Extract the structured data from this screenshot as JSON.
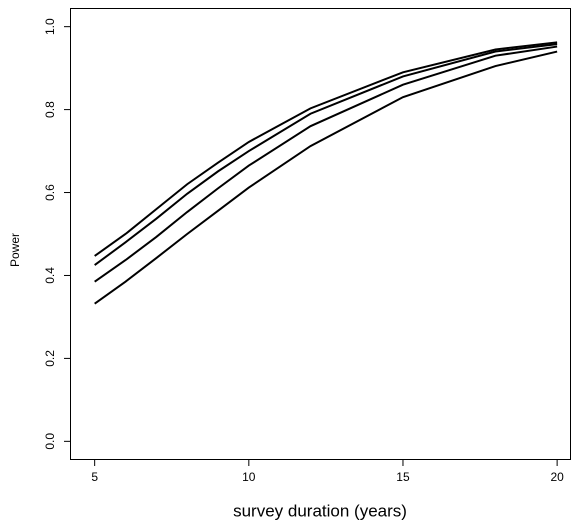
{
  "chart_data": {
    "type": "line",
    "x_label": "survey duration (years)",
    "y_label": "Power",
    "x": [
      5,
      6,
      7,
      8,
      9,
      10,
      12,
      15,
      18,
      20
    ],
    "series": [
      {
        "color": "#000000",
        "values": [
          0.447,
          0.5,
          0.56,
          0.62,
          0.672,
          0.722,
          0.803,
          0.89,
          0.945,
          0.962
        ]
      },
      {
        "color": "#000000",
        "values": [
          0.425,
          0.48,
          0.537,
          0.597,
          0.651,
          0.7,
          0.79,
          0.88,
          0.94,
          0.958
        ]
      },
      {
        "color": "#000000",
        "values": [
          0.385,
          0.437,
          0.493,
          0.553,
          0.61,
          0.665,
          0.76,
          0.86,
          0.93,
          0.952
        ]
      },
      {
        "color": "#000000",
        "values": [
          0.332,
          0.385,
          0.442,
          0.5,
          0.556,
          0.612,
          0.712,
          0.83,
          0.905,
          0.94
        ]
      }
    ],
    "xlim": [
      4.2,
      20.45
    ],
    "ylim": [
      -0.045,
      1.045
    ],
    "xticks": [
      5,
      10,
      15,
      20
    ],
    "yticks": [
      {
        "value": 0,
        "label": "0.0"
      },
      0.2,
      0.4,
      0.6,
      0.8,
      {
        "value": 1,
        "label": "1.0"
      }
    ]
  }
}
